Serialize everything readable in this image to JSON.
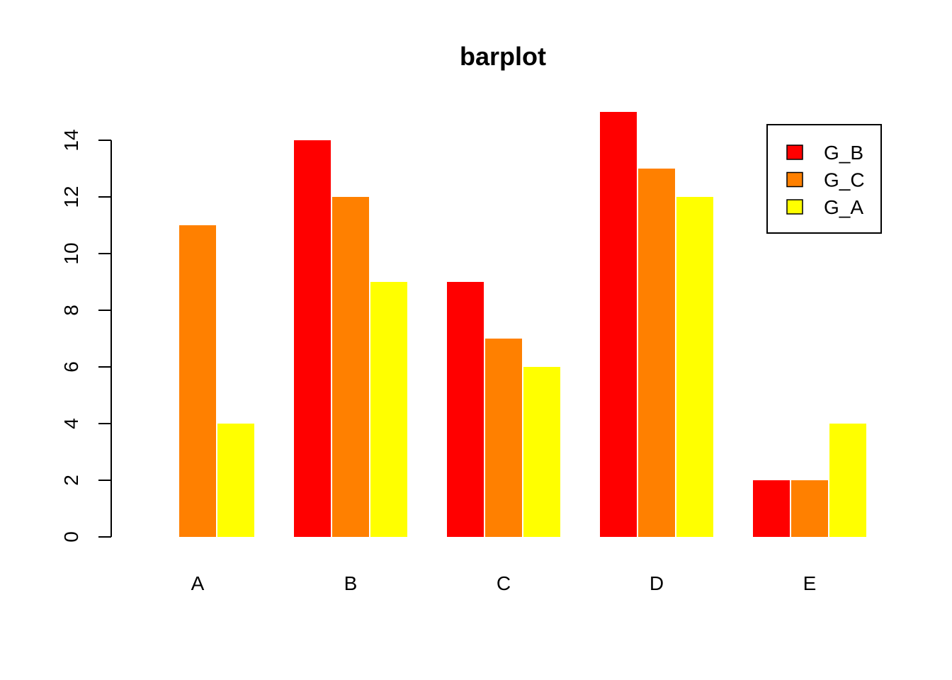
{
  "chart_data": {
    "type": "bar",
    "title": "barplot",
    "xlabel": "",
    "ylabel": "",
    "categories": [
      "A",
      "B",
      "C",
      "D",
      "E"
    ],
    "series": [
      {
        "name": "G_B",
        "color": "#FF0000",
        "values": [
          0,
          14,
          9,
          15,
          2
        ]
      },
      {
        "name": "G_C",
        "color": "#FF8000",
        "values": [
          11,
          12,
          7,
          13,
          2
        ]
      },
      {
        "name": "G_A",
        "color": "#FFFF00",
        "values": [
          4,
          9,
          6,
          12,
          4
        ]
      }
    ],
    "yticks": [
      0,
      2,
      4,
      6,
      8,
      10,
      12,
      14
    ],
    "ylim": [
      0,
      15
    ],
    "grid": false,
    "legend_position": "top-right"
  }
}
